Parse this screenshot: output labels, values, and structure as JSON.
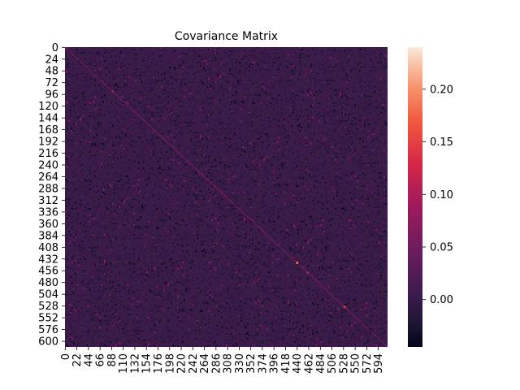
{
  "chart_data": {
    "type": "heatmap",
    "title": "Covariance Matrix",
    "xlabel": "",
    "ylabel": "",
    "matrix_size": 612,
    "y_ticks": [
      "0",
      "24",
      "48",
      "72",
      "96",
      "120",
      "144",
      "168",
      "192",
      "216",
      "240",
      "264",
      "288",
      "312",
      "336",
      "360",
      "384",
      "408",
      "432",
      "456",
      "480",
      "504",
      "528",
      "552",
      "576",
      "600"
    ],
    "x_ticks": [
      "0",
      "22",
      "44",
      "66",
      "88",
      "110",
      "132",
      "154",
      "176",
      "198",
      "220",
      "242",
      "264",
      "286",
      "308",
      "330",
      "352",
      "374",
      "396",
      "418",
      "440",
      "462",
      "484",
      "506",
      "528",
      "550",
      "572",
      "594"
    ],
    "color_range": [
      -0.045,
      0.24
    ],
    "colorbar_ticks": [
      "0.00",
      "0.05",
      "0.10",
      "0.15",
      "0.20"
    ],
    "colorbar_tick_values": [
      0.0,
      0.05,
      0.1,
      0.15,
      0.2
    ],
    "colormap": "rocket",
    "background_value": 0.0,
    "diagonal_value": 0.06,
    "notable_cells": [
      {
        "row": 440,
        "col": 440,
        "value": 0.2
      },
      {
        "row": 530,
        "col": 530,
        "value": 0.15
      },
      {
        "row": 460,
        "col": 460,
        "value": 0.12
      },
      {
        "row": 90,
        "col": 90,
        "value": 0.1
      }
    ]
  }
}
